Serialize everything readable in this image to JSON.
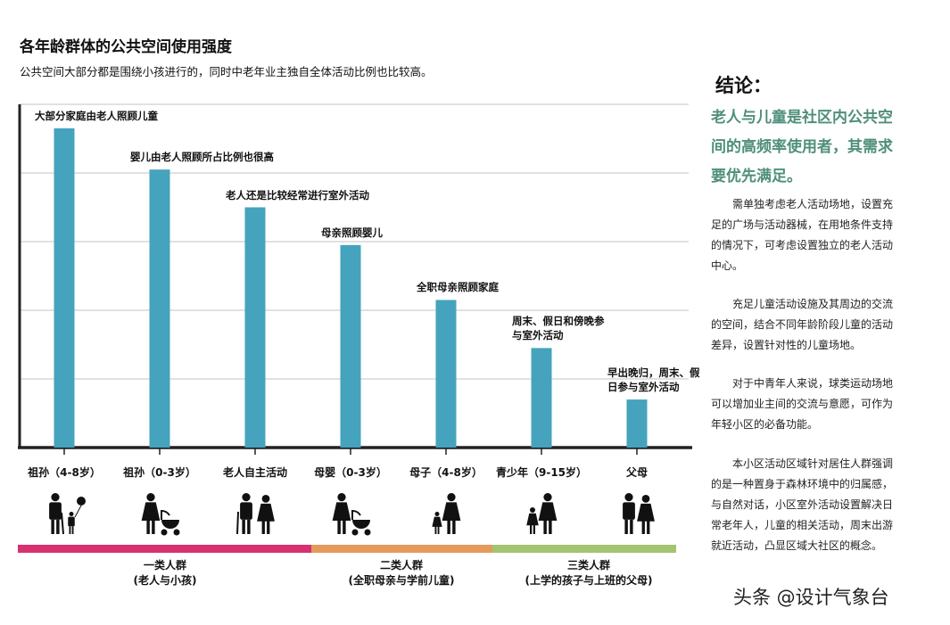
{
  "title": "各年龄群体的公共空间使用强度",
  "subtitle": "公共空间大部分都是围绕小孩进行的，同时中老年业主独自全体活动比例也比较高。",
  "chart_data": {
    "type": "bar",
    "categories": [
      "祖孙（4-8岁）",
      "祖孙（0-3岁）",
      "老人自主活动",
      "母婴（0-3岁）",
      "母子（4-8岁）",
      "青少年（9-15岁）",
      "父母"
    ],
    "values": [
      93,
      81,
      70,
      59,
      43,
      29,
      14
    ],
    "bar_annotations": [
      "大部分家庭由老人照顾儿童",
      "婴儿由老人照顾所占比例也很高",
      "老人还是比较经常进行室外活动",
      "母亲照顾婴儿",
      "全职母亲照顾家庭",
      "周末、假日和傍晚参\n与室外活动",
      "早出晚归，周末、假\n日参与室外活动"
    ],
    "ylim": [
      0,
      100
    ],
    "grid": true,
    "bar_color": "#45a3bd",
    "icons": [
      "elder-with-child-balloon-icon",
      "elder-with-stroller-icon",
      "elderly-couple-icon",
      "mother-with-stroller-icon",
      "mother-with-child-icon",
      "mother-with-teen-icon",
      "couple-icon"
    ]
  },
  "groups": [
    {
      "label": "一类人群\n(老人与小孩)",
      "color": "#d63271"
    },
    {
      "label": "二类人群\n(全职母亲与学前儿童)",
      "color": "#e39a5a"
    },
    {
      "label": "三类人群\n(上学的孩子与上班的父母)",
      "color": "#a3c471"
    }
  ],
  "conclusion": {
    "heading": "结论：",
    "highlight": "老人与儿童是社区内公共空间的高频率使用者，其需求要优先满足。",
    "paragraphs": [
      "需单独考虑老人活动场地，设置充足的广场与活动器械，在用地条件支持的情况下，可考虑设置独立的老人活动中心。",
      "充足儿童活动设施及其周边的交流的空间，结合不同年龄阶段儿童的活动差异，设置针对性的儿童场地。",
      "对于中青年人来说，球类运动场地可以增加业主间的交流与意愿，可作为年轻小区的必备功能。",
      "本小区活动区域针对居住人群强调的是一种置身于森林环境中的归属感，与自然对话，小区室外活动设置解决日常老年人，儿童的相关活动，周末出游就近活动，凸显区域大社区的概念。"
    ]
  },
  "watermark": "头条 @设计气象台"
}
